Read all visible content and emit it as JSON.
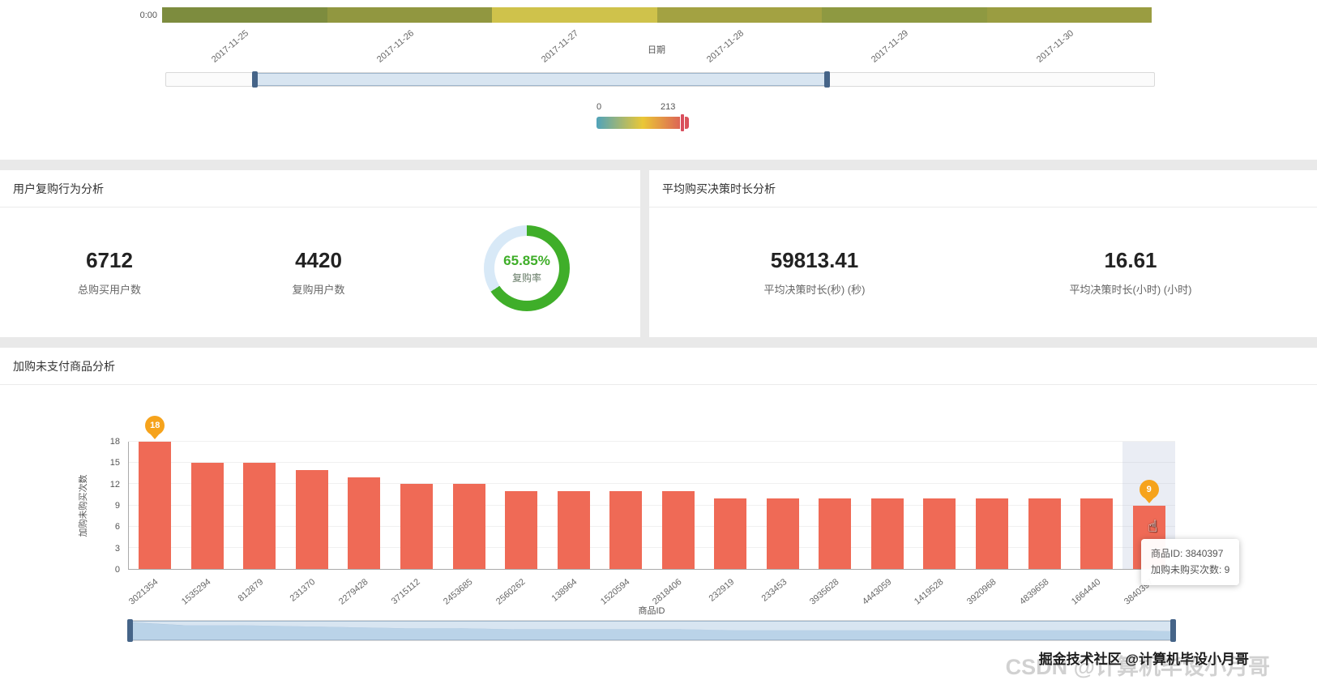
{
  "repurchase_card": {
    "title": "用户复购行为分析",
    "stats": [
      {
        "value": "6712",
        "label": "总购买用户数"
      },
      {
        "value": "4420",
        "label": "复购用户数"
      }
    ]
  },
  "decision_card": {
    "title": "平均购买决策时长分析",
    "stats": [
      {
        "value": "59813.41",
        "label": "平均决策时长(秒) (秒)"
      },
      {
        "value": "16.61",
        "label": "平均决策时长(小时) (小时)"
      }
    ]
  },
  "cart_card": {
    "title": "加购未支付商品分析"
  },
  "watermark": {
    "main": "掘金技术社区 @计算机毕设小月哥",
    "ghost": "CSDN @计算机毕设小月哥"
  },
  "chart_data": [
    {
      "type": "heatmap",
      "visible_row": "0:00",
      "xlabel": "日期",
      "x_categories": [
        "2017-11-25",
        "2017-11-26",
        "2017-11-27",
        "2017-11-28",
        "2017-11-29",
        "2017-11-30"
      ],
      "row_cell_colors": [
        "#7d8c3e",
        "#919740",
        "#cfc24b",
        "#a3a242",
        "#8e9941",
        "#9a9d41"
      ],
      "visual_map": {
        "min_label": "0",
        "max_label": "213",
        "min": 0,
        "max": 213,
        "colors": [
          "#50a3ba",
          "#eac736",
          "#d94e5d"
        ]
      }
    },
    {
      "type": "pie",
      "title": "复购率",
      "value": 65.85,
      "display": "65.85%",
      "color": "#3fae29",
      "track_color": "#d8e9f7"
    },
    {
      "type": "bar",
      "title": "加购未支付商品分析",
      "xlabel": "商品ID",
      "ylabel": "加购未购买次数",
      "categories": [
        "3021354",
        "1535294",
        "812879",
        "231370",
        "2279428",
        "3715112",
        "2453685",
        "2560262",
        "138964",
        "1520594",
        "2818406",
        "232919",
        "233453",
        "3935628",
        "4443059",
        "1419528",
        "3920968",
        "4839658",
        "1664440",
        "3840397"
      ],
      "values": [
        18,
        15,
        15,
        14,
        13,
        12,
        12,
        11,
        11,
        11,
        11,
        10,
        10,
        10,
        10,
        10,
        10,
        10,
        10,
        9
      ],
      "ylim": [
        0,
        18
      ],
      "yticks": [
        0,
        3,
        6,
        9,
        12,
        15,
        18
      ],
      "grid": true,
      "legend_position": "none",
      "bar_color": "#ef6a56",
      "markpoints": [
        {
          "index": 0,
          "label": "18"
        },
        {
          "index": 19,
          "label": "9"
        }
      ],
      "highlight_index": 19,
      "tooltip": {
        "line1": "商品ID: 3840397",
        "line2": "加购未购买次数: 9"
      }
    }
  ]
}
